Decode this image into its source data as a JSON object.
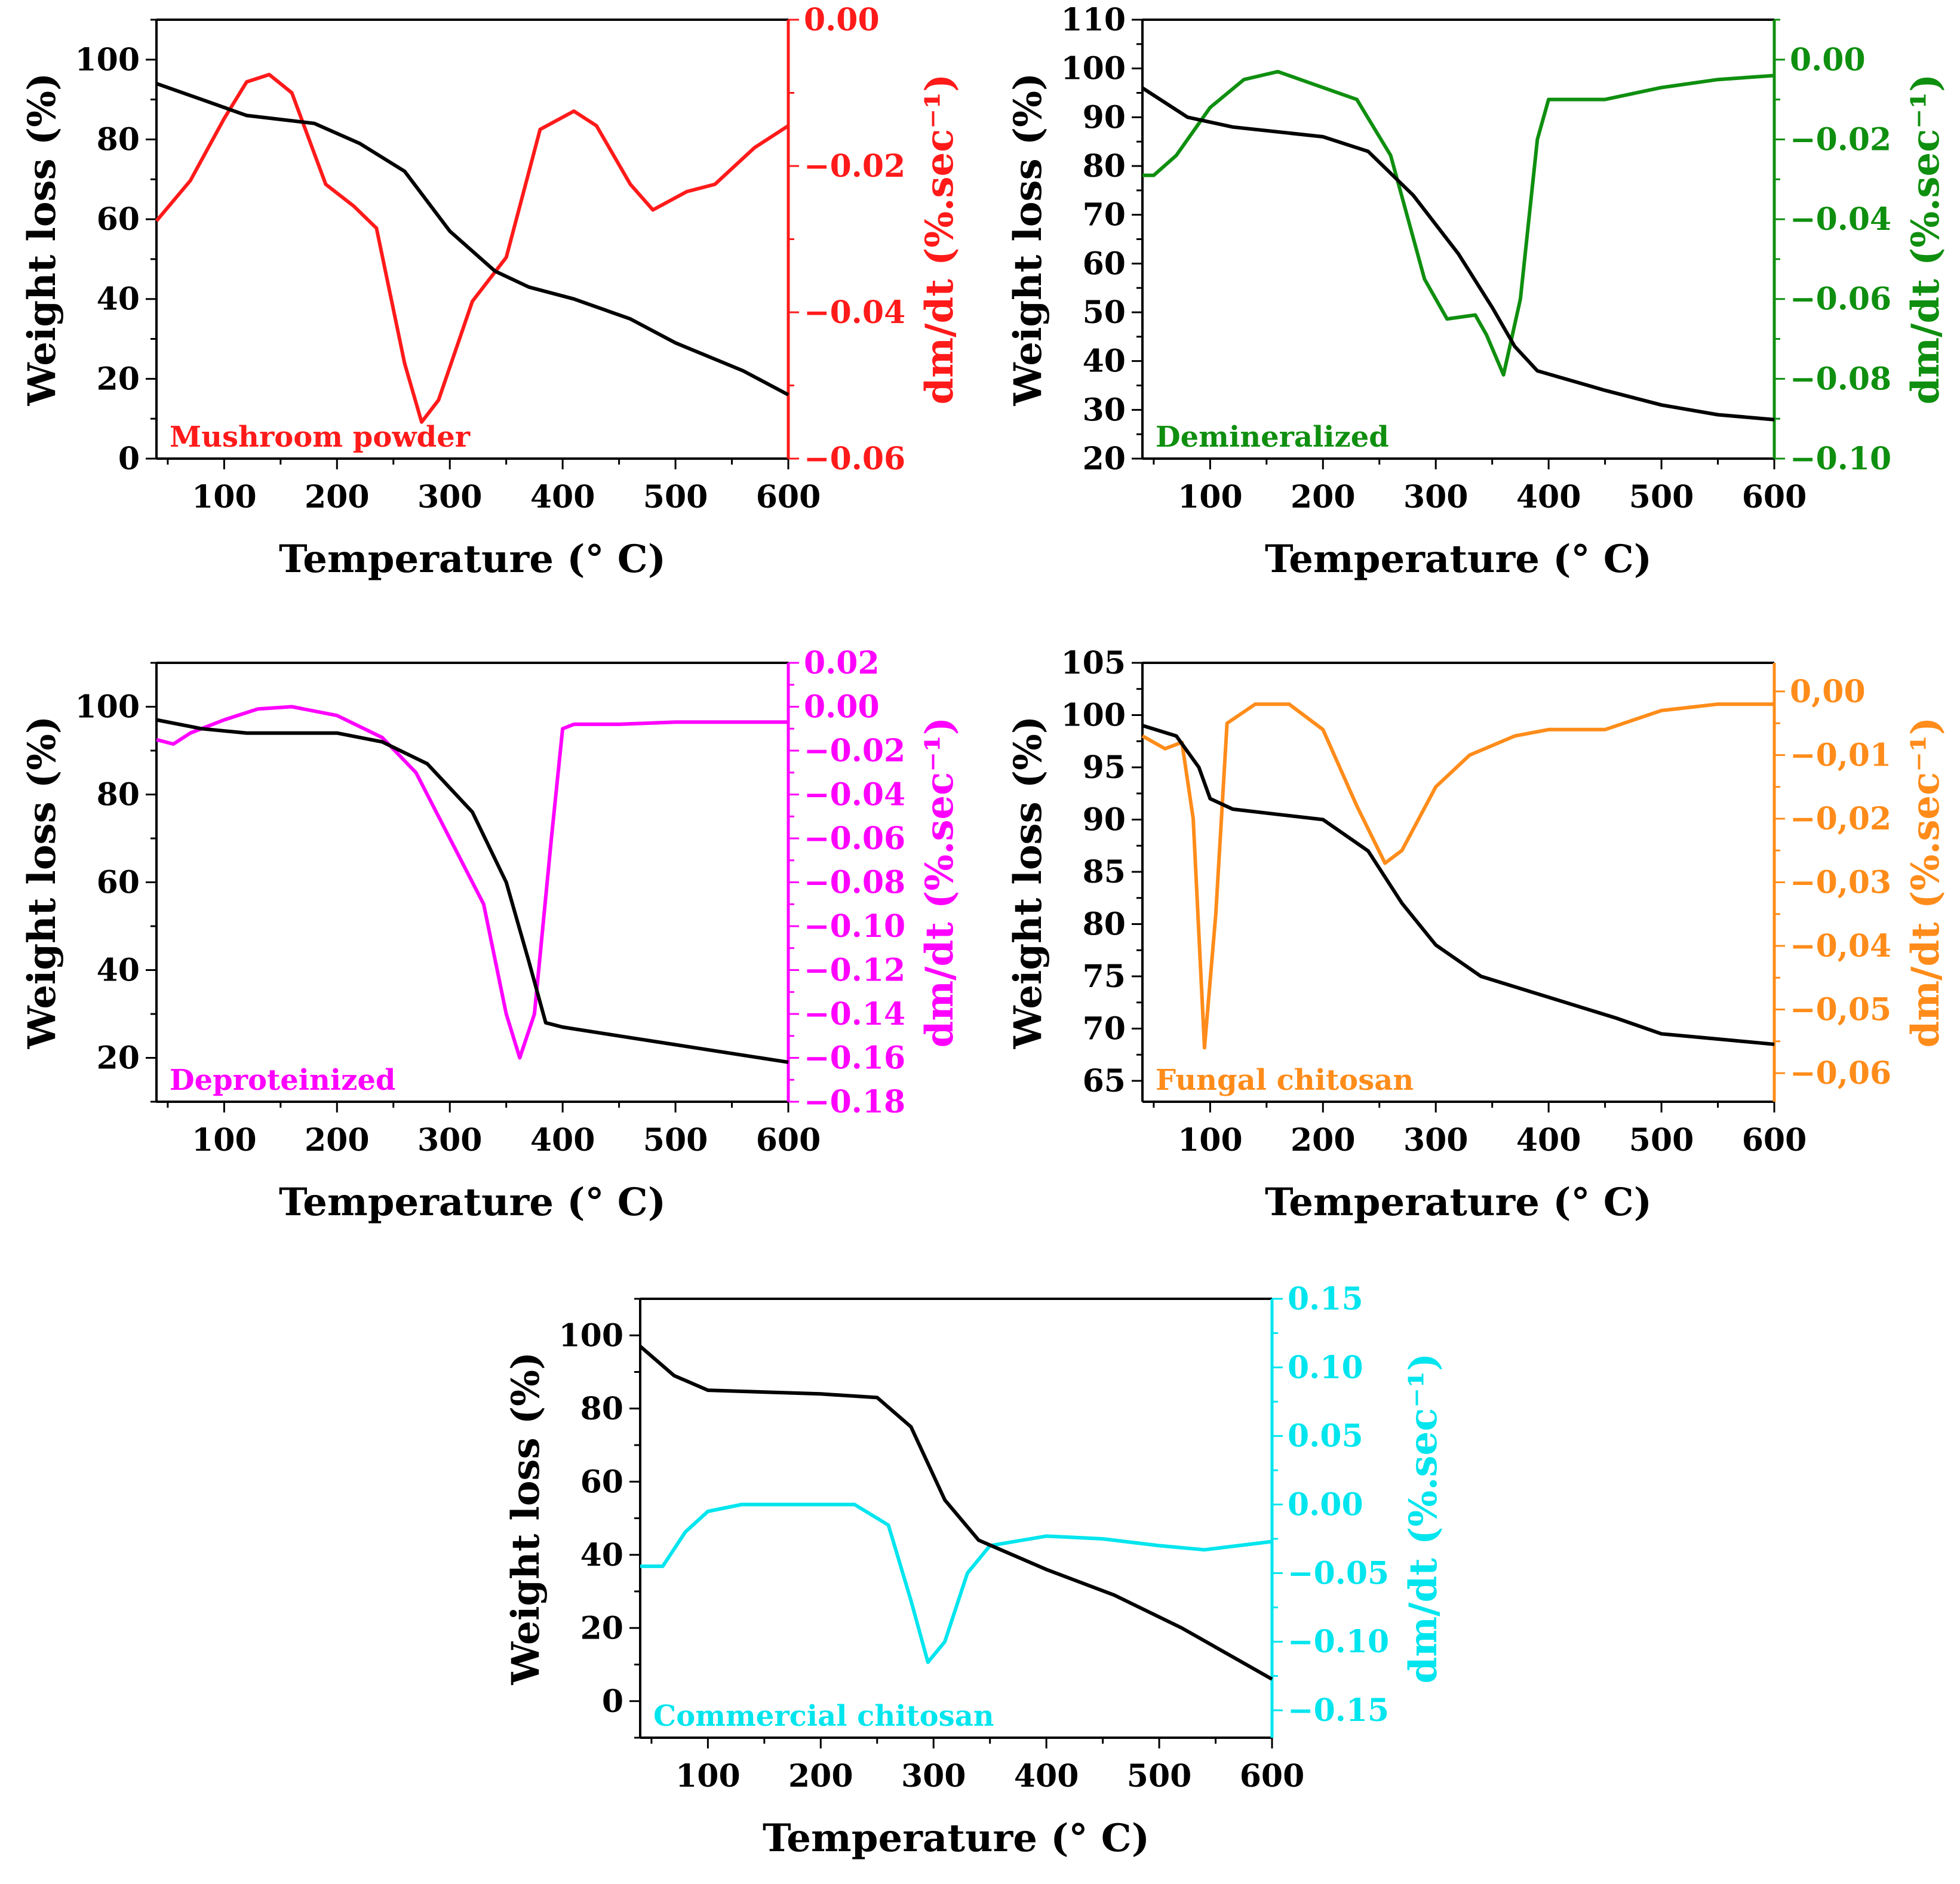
{
  "figure": {
    "colors": {
      "weight": "#000000"
    },
    "panels": [
      {
        "id": "mushroom",
        "annotation": "Mushroom powder",
        "color": "#ff1a1a",
        "xlabel": "Temperature (° C)",
        "ylabel_left": "Weight loss (%)",
        "ylabel_right": "dm/dt (%.sec⁻¹)",
        "xlim": [
          40,
          600
        ],
        "ylim_left": [
          0,
          110
        ],
        "ylim_right": [
          -0.06,
          0.0
        ],
        "xticks": [
          100,
          200,
          300,
          400,
          500,
          600
        ],
        "xtick_labels": [
          "100",
          "200",
          "300",
          "400",
          "500",
          "600"
        ],
        "yticks_left": [
          0,
          20,
          40,
          60,
          80,
          100
        ],
        "ytick_labels_left": [
          "0",
          "20",
          "40",
          "60",
          "80",
          "100"
        ],
        "yticks_right": [
          0.0,
          -0.02,
          -0.04,
          -0.06
        ],
        "ytick_labels_right": [
          "0.00",
          "−0.02",
          "−0.04",
          "−0.06"
        ],
        "weight": [
          [
            40,
            94
          ],
          [
            80,
            90
          ],
          [
            120,
            86
          ],
          [
            180,
            84
          ],
          [
            220,
            79
          ],
          [
            260,
            72
          ],
          [
            300,
            57
          ],
          [
            340,
            47
          ],
          [
            370,
            43
          ],
          [
            410,
            40
          ],
          [
            460,
            35
          ],
          [
            500,
            29
          ],
          [
            560,
            22
          ],
          [
            600,
            16
          ]
        ],
        "dmdt": [
          [
            40,
            -0.0275
          ],
          [
            70,
            -0.022
          ],
          [
            100,
            -0.0135
          ],
          [
            120,
            -0.0085
          ],
          [
            140,
            -0.0075
          ],
          [
            160,
            -0.01
          ],
          [
            190,
            -0.0225
          ],
          [
            215,
            -0.0255
          ],
          [
            235,
            -0.0285
          ],
          [
            260,
            -0.047
          ],
          [
            275,
            -0.055
          ],
          [
            290,
            -0.052
          ],
          [
            320,
            -0.0385
          ],
          [
            350,
            -0.0325
          ],
          [
            380,
            -0.015
          ],
          [
            410,
            -0.0125
          ],
          [
            430,
            -0.0145
          ],
          [
            460,
            -0.0225
          ],
          [
            480,
            -0.026
          ],
          [
            510,
            -0.0235
          ],
          [
            535,
            -0.0225
          ],
          [
            570,
            -0.0175
          ],
          [
            600,
            -0.0145
          ]
        ]
      },
      {
        "id": "demineralized",
        "annotation": "Demineralized",
        "color": "#0f8f0f",
        "xlabel": "Temperature (° C)",
        "ylabel_left": "Weight loss (%)",
        "ylabel_right": "dm/dt (%.sec⁻¹)",
        "xlim": [
          40,
          600
        ],
        "ylim_left": [
          20,
          110
        ],
        "ylim_right": [
          -0.1,
          0.01
        ],
        "xticks": [
          100,
          200,
          300,
          400,
          500,
          600
        ],
        "xtick_labels": [
          "100",
          "200",
          "300",
          "400",
          "500",
          "600"
        ],
        "yticks_left": [
          20,
          30,
          40,
          50,
          60,
          70,
          80,
          90,
          100,
          110
        ],
        "ytick_labels_left": [
          "20",
          "30",
          "40",
          "50",
          "60",
          "70",
          "80",
          "90",
          "100",
          "110"
        ],
        "yticks_right": [
          0.0,
          -0.02,
          -0.04,
          -0.06,
          -0.08,
          -0.1
        ],
        "ytick_labels_right": [
          "0.00",
          "−0.02",
          "−0.04",
          "−0.06",
          "−0.08",
          "−0.10"
        ],
        "weight": [
          [
            40,
            96
          ],
          [
            80,
            90
          ],
          [
            120,
            88
          ],
          [
            200,
            86
          ],
          [
            240,
            83
          ],
          [
            280,
            74
          ],
          [
            320,
            62
          ],
          [
            350,
            51
          ],
          [
            370,
            43
          ],
          [
            390,
            38
          ],
          [
            450,
            34
          ],
          [
            500,
            31
          ],
          [
            550,
            29
          ],
          [
            600,
            28
          ]
        ],
        "dmdt": [
          [
            40,
            -0.029
          ],
          [
            50,
            -0.029
          ],
          [
            70,
            -0.024
          ],
          [
            100,
            -0.012
          ],
          [
            130,
            -0.005
          ],
          [
            160,
            -0.003
          ],
          [
            190,
            -0.006
          ],
          [
            230,
            -0.01
          ],
          [
            260,
            -0.024
          ],
          [
            290,
            -0.055
          ],
          [
            310,
            -0.065
          ],
          [
            335,
            -0.064
          ],
          [
            345,
            -0.069
          ],
          [
            360,
            -0.079
          ],
          [
            375,
            -0.06
          ],
          [
            390,
            -0.02
          ],
          [
            400,
            -0.01
          ],
          [
            450,
            -0.01
          ],
          [
            500,
            -0.007
          ],
          [
            550,
            -0.005
          ],
          [
            600,
            -0.004
          ]
        ]
      },
      {
        "id": "deproteinized",
        "annotation": "Deproteinized",
        "color": "#ff00ff",
        "xlabel": "Temperature (° C)",
        "ylabel_left": "Weight loss (%)",
        "ylabel_right": "dm/dt (%.sec⁻¹)",
        "xlim": [
          40,
          600
        ],
        "ylim_left": [
          10,
          110
        ],
        "ylim_right": [
          -0.18,
          0.02
        ],
        "xticks": [
          100,
          200,
          300,
          400,
          500,
          600
        ],
        "xtick_labels": [
          "100",
          "200",
          "300",
          "400",
          "500",
          "600"
        ],
        "yticks_left": [
          20,
          40,
          60,
          80,
          100
        ],
        "ytick_labels_left": [
          "20",
          "40",
          "60",
          "80",
          "100"
        ],
        "yticks_right": [
          0.02,
          0.0,
          -0.02,
          -0.04,
          -0.06,
          -0.08,
          -0.1,
          -0.12,
          -0.14,
          -0.16,
          -0.18
        ],
        "ytick_labels_right": [
          "0.02",
          "0.00",
          "−0.02",
          "−0.04",
          "−0.06",
          "−0.08",
          "−0.10",
          "−0.12",
          "−0.14",
          "−0.16",
          "−0.18"
        ],
        "weight": [
          [
            40,
            97
          ],
          [
            80,
            95
          ],
          [
            120,
            94
          ],
          [
            200,
            94
          ],
          [
            240,
            92
          ],
          [
            280,
            87
          ],
          [
            320,
            76
          ],
          [
            350,
            60
          ],
          [
            370,
            42
          ],
          [
            385,
            28
          ],
          [
            400,
            27
          ],
          [
            450,
            25
          ],
          [
            500,
            23
          ],
          [
            550,
            21
          ],
          [
            600,
            19
          ]
        ],
        "dmdt": [
          [
            40,
            -0.015
          ],
          [
            55,
            -0.017
          ],
          [
            70,
            -0.012
          ],
          [
            100,
            -0.006
          ],
          [
            130,
            -0.001
          ],
          [
            160,
            0.0
          ],
          [
            200,
            -0.004
          ],
          [
            240,
            -0.014
          ],
          [
            270,
            -0.03
          ],
          [
            300,
            -0.06
          ],
          [
            330,
            -0.09
          ],
          [
            350,
            -0.14
          ],
          [
            362,
            -0.16
          ],
          [
            375,
            -0.14
          ],
          [
            390,
            -0.06
          ],
          [
            400,
            -0.01
          ],
          [
            410,
            -0.008
          ],
          [
            450,
            -0.008
          ],
          [
            500,
            -0.007
          ],
          [
            550,
            -0.007
          ],
          [
            600,
            -0.007
          ]
        ]
      },
      {
        "id": "fungal",
        "annotation": "Fungal chitosan",
        "color": "#ff8c1a",
        "xlabel": "Temperature (° C)",
        "ylabel_left": "Weight loss (%)",
        "ylabel_right": "dm/dt (%.sec⁻¹)",
        "xlim": [
          40,
          600
        ],
        "ylim_left": [
          63,
          105
        ],
        "ylim_right": [
          -0.0645,
          0.0045
        ],
        "xticks": [
          100,
          200,
          300,
          400,
          500,
          600
        ],
        "xtick_labels": [
          "100",
          "200",
          "300",
          "400",
          "500",
          "600"
        ],
        "yticks_left": [
          65,
          70,
          75,
          80,
          85,
          90,
          95,
          100,
          105
        ],
        "ytick_labels_left": [
          "65",
          "70",
          "75",
          "80",
          "85",
          "90",
          "95",
          "100",
          "105"
        ],
        "yticks_right": [
          0.0,
          -0.01,
          -0.02,
          -0.03,
          -0.04,
          -0.05,
          -0.06
        ],
        "ytick_labels_right": [
          "0,00",
          "−0,01",
          "−0,02",
          "−0,03",
          "−0,04",
          "−0,05",
          "−0,06"
        ],
        "weight": [
          [
            40,
            99
          ],
          [
            70,
            98
          ],
          [
            90,
            95
          ],
          [
            100,
            92
          ],
          [
            120,
            91
          ],
          [
            160,
            90.5
          ],
          [
            200,
            90
          ],
          [
            240,
            87
          ],
          [
            270,
            82
          ],
          [
            300,
            78
          ],
          [
            340,
            75
          ],
          [
            400,
            73
          ],
          [
            460,
            71
          ],
          [
            500,
            69.5
          ],
          [
            550,
            69
          ],
          [
            600,
            68.5
          ]
        ],
        "dmdt": [
          [
            40,
            -0.007
          ],
          [
            60,
            -0.009
          ],
          [
            75,
            -0.008
          ],
          [
            85,
            -0.02
          ],
          [
            95,
            -0.056
          ],
          [
            105,
            -0.035
          ],
          [
            115,
            -0.005
          ],
          [
            140,
            -0.002
          ],
          [
            170,
            -0.002
          ],
          [
            200,
            -0.006
          ],
          [
            230,
            -0.018
          ],
          [
            255,
            -0.027
          ],
          [
            270,
            -0.025
          ],
          [
            300,
            -0.015
          ],
          [
            330,
            -0.01
          ],
          [
            370,
            -0.007
          ],
          [
            400,
            -0.006
          ],
          [
            450,
            -0.006
          ],
          [
            500,
            -0.003
          ],
          [
            550,
            -0.002
          ],
          [
            600,
            -0.002
          ]
        ]
      },
      {
        "id": "commercial",
        "annotation": "Commercial chitosan",
        "color": "#00e5ee",
        "xlabel": "Temperature (° C)",
        "ylabel_left": "Weight loss (%)",
        "ylabel_right": "dm/dt (%.sec⁻¹)",
        "xlim": [
          40,
          600
        ],
        "ylim_left": [
          -10,
          110
        ],
        "ylim_right": [
          -0.17,
          0.15
        ],
        "xticks": [
          100,
          200,
          300,
          400,
          500,
          600
        ],
        "xtick_labels": [
          "100",
          "200",
          "300",
          "400",
          "500",
          "600"
        ],
        "yticks_left": [
          0,
          20,
          40,
          60,
          80,
          100
        ],
        "ytick_labels_left": [
          "0",
          "20",
          "40",
          "60",
          "80",
          "100"
        ],
        "yticks_right": [
          0.15,
          0.1,
          0.05,
          0.0,
          -0.05,
          -0.1,
          -0.15
        ],
        "ytick_labels_right": [
          "0.15",
          "0.10",
          "0.05",
          "0.00",
          "−0.05",
          "−0.10",
          "−0.15"
        ],
        "weight": [
          [
            40,
            97
          ],
          [
            70,
            89
          ],
          [
            100,
            85
          ],
          [
            200,
            84
          ],
          [
            250,
            83
          ],
          [
            280,
            75
          ],
          [
            310,
            55
          ],
          [
            340,
            44
          ],
          [
            400,
            36
          ],
          [
            460,
            29
          ],
          [
            520,
            20
          ],
          [
            560,
            13
          ],
          [
            600,
            6
          ]
        ],
        "dmdt": [
          [
            40,
            -0.045
          ],
          [
            60,
            -0.045
          ],
          [
            80,
            -0.02
          ],
          [
            100,
            -0.005
          ],
          [
            130,
            0.0
          ],
          [
            230,
            0.0
          ],
          [
            260,
            -0.015
          ],
          [
            280,
            -0.07
          ],
          [
            295,
            -0.115
          ],
          [
            310,
            -0.1
          ],
          [
            330,
            -0.05
          ],
          [
            350,
            -0.03
          ],
          [
            400,
            -0.023
          ],
          [
            450,
            -0.025
          ],
          [
            500,
            -0.03
          ],
          [
            540,
            -0.033
          ],
          [
            600,
            -0.027
          ]
        ]
      }
    ]
  },
  "chart_data": [
    {
      "type": "line",
      "title": "",
      "annotation": "Mushroom powder",
      "xlabel": "Temperature (° C)",
      "ylabel": "Weight loss (%)",
      "y2label": "dm/dt (%.sec⁻¹)",
      "xlim": [
        40,
        600
      ],
      "ylim": [
        0,
        110
      ],
      "y2lim": [
        -0.06,
        0.0
      ],
      "grid": false
    },
    {
      "type": "line",
      "title": "",
      "annotation": "Demineralized",
      "xlabel": "Temperature (° C)",
      "ylabel": "Weight loss (%)",
      "y2label": "dm/dt (%.sec⁻¹)",
      "xlim": [
        40,
        600
      ],
      "ylim": [
        20,
        110
      ],
      "y2lim": [
        -0.1,
        0.01
      ],
      "grid": false
    },
    {
      "type": "line",
      "title": "",
      "annotation": "Deproteinized",
      "xlabel": "Temperature (° C)",
      "ylabel": "Weight loss (%)",
      "y2label": "dm/dt (%.sec⁻¹)",
      "xlim": [
        40,
        600
      ],
      "ylim": [
        10,
        110
      ],
      "y2lim": [
        -0.18,
        0.02
      ],
      "grid": false
    },
    {
      "type": "line",
      "title": "",
      "annotation": "Fungal chitosan",
      "xlabel": "Temperature (° C)",
      "ylabel": "Weight loss (%)",
      "y2label": "dm/dt (%.sec⁻¹)",
      "xlim": [
        40,
        600
      ],
      "ylim": [
        63,
        105
      ],
      "y2lim": [
        -0.0645,
        0.0045
      ],
      "grid": false
    },
    {
      "type": "line",
      "title": "",
      "annotation": "Commercial chitosan",
      "xlabel": "Temperature (° C)",
      "ylabel": "Weight loss (%)",
      "y2label": "dm/dt (%.sec⁻¹)",
      "xlim": [
        40,
        600
      ],
      "ylim": [
        -10,
        110
      ],
      "y2lim": [
        -0.17,
        0.15
      ],
      "grid": false
    }
  ]
}
